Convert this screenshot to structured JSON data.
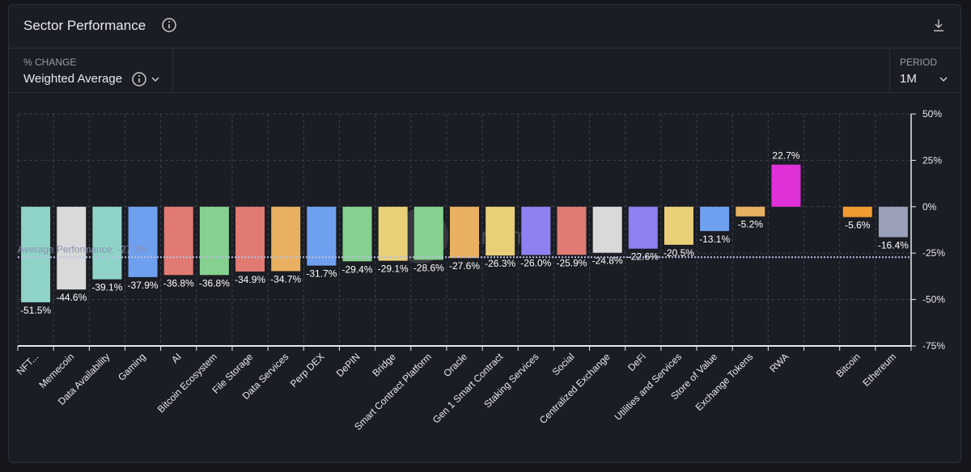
{
  "header": {
    "title": "Sector Performance"
  },
  "controls": {
    "metric_label": "% CHANGE",
    "metric_value": "Weighted Average",
    "period_label": "PERIOD",
    "period_value": "1M"
  },
  "chart_data": {
    "type": "bar",
    "categories": [
      "NFT...",
      "Memecoin",
      "Data Availability",
      "Gaming",
      "AI",
      "Bitcoin Ecosystem",
      "File Storage",
      "Data Services",
      "Perp DEX",
      "DePIN",
      "Bridge",
      "Smart Contract Platform",
      "Oracle",
      "Gen 1 Smart Contract",
      "Staking Services",
      "Social",
      "Centralized Exchange",
      "DeFi",
      "Utilities and Services",
      "Store of Value",
      "Exchange Tokens",
      "RWA",
      null,
      "Bitcoin",
      "Ethereum"
    ],
    "values": [
      -51.5,
      -44.6,
      -39.1,
      -37.9,
      -36.8,
      -36.8,
      -34.9,
      -34.7,
      -31.7,
      -29.4,
      -29.1,
      -28.6,
      -27.6,
      -26.3,
      -26.0,
      -25.9,
      -24.8,
      -22.6,
      -20.5,
      -13.1,
      -5.2,
      22.7,
      null,
      -5.6,
      -16.4
    ],
    "value_labels": [
      "-51.5%",
      "-44.6%",
      "-39.1%",
      "-37.9%",
      "-36.8%",
      "-36.8%",
      "-34.9%",
      "-34.7%",
      "-31.7%",
      "-29.4%",
      "-29.1%",
      "-28.6%",
      "-27.6%",
      "-26.3%",
      "-26.0%",
      "-25.9%",
      "-24.8%",
      "-22.6%",
      "-20.5%",
      "-13.1%",
      "-5.2%",
      "22.7%",
      null,
      "-5.6%",
      "-16.4%"
    ],
    "colors": [
      "#8fd3c8",
      "#d9d9d9",
      "#8fd3c8",
      "#6fa0f0",
      "#e07a72",
      "#86d18f",
      "#e07a72",
      "#e8b060",
      "#6fa0f0",
      "#86d18f",
      "#e8cf78",
      "#86d18f",
      "#e8b060",
      "#e8cf78",
      "#8d80f0",
      "#e07a72",
      "#d9d9d9",
      "#8d80f0",
      "#e8cf78",
      "#6fa0f0",
      "#e8b060",
      "#e030d8",
      null,
      "#f09a30",
      "#9aa0b8"
    ],
    "ylim": [
      -75,
      50
    ],
    "yticks": [
      {
        "value": -75,
        "label": "-75%"
      },
      {
        "value": -50,
        "label": "-50%"
      },
      {
        "value": -25,
        "label": "-25%"
      },
      {
        "value": 0,
        "label": "0%"
      },
      {
        "value": 25,
        "label": "25%"
      },
      {
        "value": 50,
        "label": "50%"
      }
    ],
    "grid": true,
    "average": {
      "value": -27.2,
      "label": "Average Performance: -27.2%"
    },
    "watermark": "Artemis"
  }
}
